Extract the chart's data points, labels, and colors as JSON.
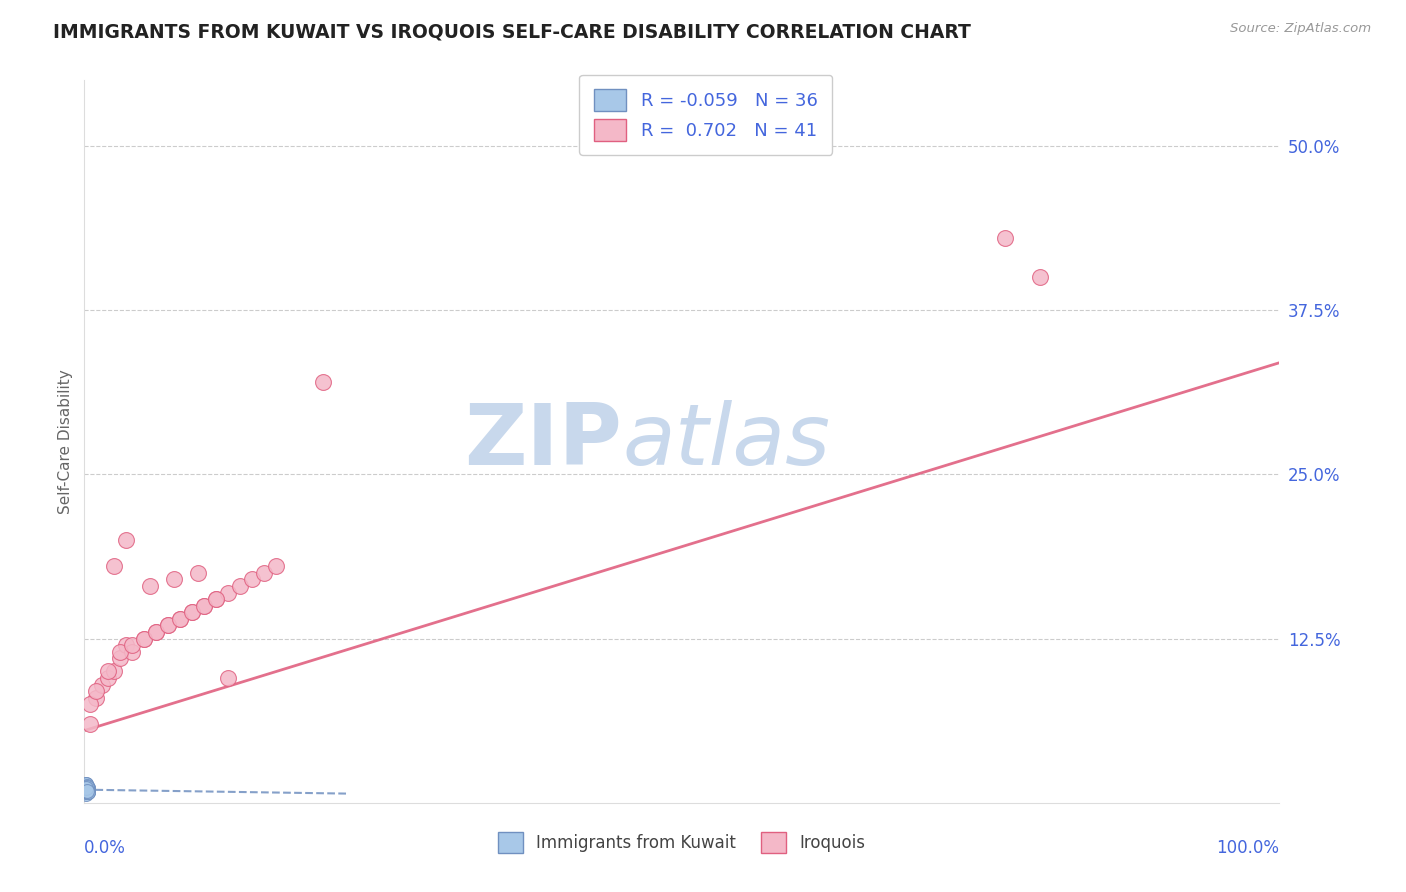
{
  "title": "IMMIGRANTS FROM KUWAIT VS IROQUOIS SELF-CARE DISABILITY CORRELATION CHART",
  "source": "Source: ZipAtlas.com",
  "ylabel": "Self-Care Disability",
  "color_blue": "#a8c8e8",
  "color_pink": "#f4b8c8",
  "color_blue_line": "#7090c0",
  "color_pink_line": "#e06080",
  "color_axis_text": "#4466dd",
  "color_grid": "#cccccc",
  "watermark_color": "#c8d8ec",
  "blue_x": [
    0.001,
    0.002,
    0.001,
    0.003,
    0.002,
    0.001,
    0.003,
    0.002,
    0.001,
    0.002,
    0.003,
    0.001,
    0.002,
    0.001,
    0.003,
    0.002,
    0.001,
    0.002,
    0.003,
    0.002,
    0.001,
    0.003,
    0.002,
    0.001,
    0.002,
    0.003,
    0.001,
    0.002,
    0.001,
    0.003,
    0.002,
    0.001,
    0.003,
    0.002,
    0.001,
    0.002
  ],
  "blue_y": [
    0.012,
    0.01,
    0.008,
    0.011,
    0.009,
    0.013,
    0.01,
    0.012,
    0.007,
    0.011,
    0.009,
    0.014,
    0.01,
    0.008,
    0.011,
    0.009,
    0.013,
    0.01,
    0.008,
    0.012,
    0.011,
    0.009,
    0.01,
    0.014,
    0.011,
    0.008,
    0.012,
    0.01,
    0.009,
    0.011,
    0.013,
    0.01,
    0.008,
    0.012,
    0.011,
    0.009
  ],
  "pink_x": [
    0.005,
    0.01,
    0.015,
    0.02,
    0.025,
    0.03,
    0.035,
    0.04,
    0.05,
    0.06,
    0.07,
    0.08,
    0.09,
    0.1,
    0.11,
    0.12,
    0.13,
    0.14,
    0.15,
    0.16,
    0.005,
    0.01,
    0.02,
    0.03,
    0.04,
    0.05,
    0.06,
    0.07,
    0.08,
    0.09,
    0.1,
    0.11,
    0.12,
    0.025,
    0.035,
    0.055,
    0.075,
    0.095,
    0.77,
    0.8,
    0.2
  ],
  "pink_y": [
    0.06,
    0.08,
    0.09,
    0.095,
    0.1,
    0.11,
    0.12,
    0.115,
    0.125,
    0.13,
    0.135,
    0.14,
    0.145,
    0.15,
    0.155,
    0.16,
    0.165,
    0.17,
    0.175,
    0.18,
    0.075,
    0.085,
    0.1,
    0.115,
    0.12,
    0.125,
    0.13,
    0.135,
    0.14,
    0.145,
    0.15,
    0.155,
    0.095,
    0.18,
    0.2,
    0.165,
    0.17,
    0.175,
    0.43,
    0.4,
    0.32
  ],
  "pink_trend_x": [
    0.0,
    1.0
  ],
  "pink_trend_y": [
    0.055,
    0.335
  ],
  "blue_trend_x": [
    0.0,
    0.22
  ],
  "blue_trend_y": [
    0.01,
    0.007
  ],
  "xlim": [
    0.0,
    1.0
  ],
  "ylim": [
    0.0,
    0.55
  ],
  "yticks": [
    0.0,
    0.125,
    0.25,
    0.375,
    0.5
  ],
  "ytick_labels": [
    "",
    "12.5%",
    "25.0%",
    "37.5%",
    "50.0%"
  ]
}
